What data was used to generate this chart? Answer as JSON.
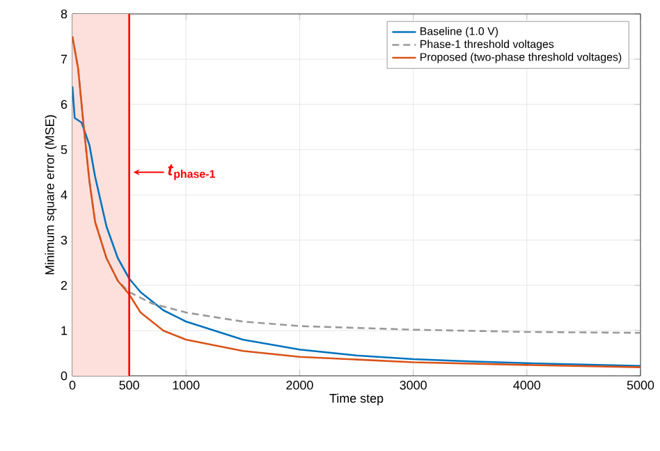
{
  "chart_data": {
    "type": "line",
    "xlabel": "Time step",
    "ylabel": "Minimum square error (MSE)",
    "xlim": [
      0,
      5000
    ],
    "xticks": [
      0,
      500,
      1000,
      2000,
      3000,
      4000,
      5000
    ],
    "ylim": [
      0,
      8
    ],
    "yticks": [
      0,
      1,
      2,
      3,
      4,
      5,
      6,
      7,
      8
    ],
    "grid": true,
    "legend": "top right",
    "series": [
      {
        "name": "Baseline (1.0 V)",
        "color": "#0072bd",
        "x": [
          0,
          20,
          80,
          150,
          200,
          300,
          400,
          500,
          600,
          800,
          1000,
          1500,
          2000,
          2500,
          3000,
          3500,
          4000,
          4500,
          5000
        ],
        "values": [
          6.4,
          5.7,
          5.6,
          5.1,
          4.4,
          3.3,
          2.6,
          2.15,
          1.85,
          1.45,
          1.2,
          0.8,
          0.58,
          0.45,
          0.37,
          0.32,
          0.28,
          0.25,
          0.22
        ]
      },
      {
        "name": "Phase-1 threshold voltages",
        "color": "#999999",
        "line_style": "dashed",
        "x": [
          0,
          50,
          100,
          150,
          200,
          300,
          400,
          500,
          700,
          1000,
          1500,
          2000,
          3000,
          4000,
          5000
        ],
        "values": [
          7.5,
          6.8,
          5.5,
          4.3,
          3.4,
          2.6,
          2.1,
          1.85,
          1.6,
          1.4,
          1.2,
          1.1,
          1.02,
          0.97,
          0.95
        ]
      },
      {
        "name": "Proposed (two-phase threshold voltages)",
        "color": "#d95319",
        "x": [
          0,
          50,
          100,
          150,
          200,
          300,
          400,
          500,
          600,
          800,
          1000,
          1500,
          2000,
          3000,
          4000,
          5000
        ],
        "values": [
          7.5,
          6.8,
          5.5,
          4.3,
          3.4,
          2.6,
          2.1,
          1.8,
          1.4,
          1.0,
          0.8,
          0.55,
          0.42,
          0.3,
          0.24,
          0.19
        ]
      }
    ],
    "ref_lines": [
      {
        "axis": "x",
        "value": 500,
        "color": "#ff0000"
      }
    ],
    "bands": [
      {
        "axis": "x",
        "from": 0,
        "to": 500,
        "color": "#fde0dc"
      }
    ],
    "annotations": [
      {
        "text": "*t*$_{phase-1}$",
        "x": 500,
        "y": 4.5
      }
    ]
  }
}
